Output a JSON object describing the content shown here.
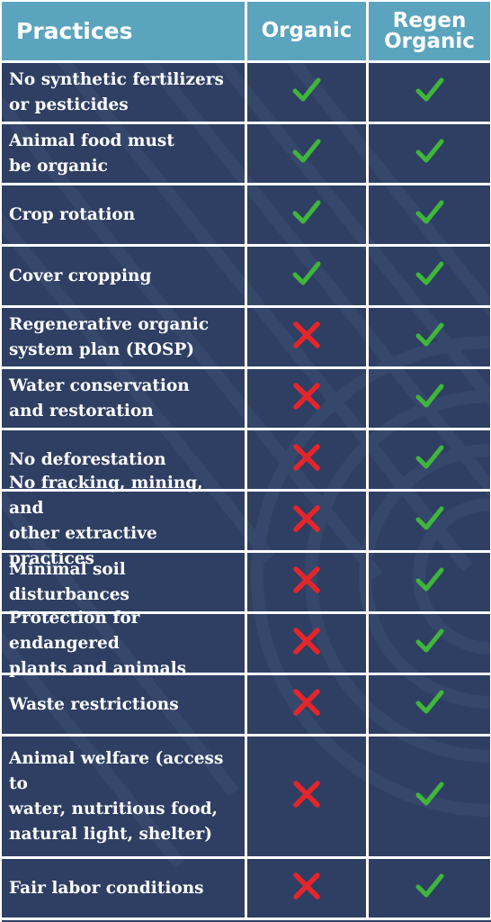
{
  "colors": {
    "header_bg": "#5ba4bd",
    "body_bg": "#2f3f63",
    "check": "#3fb63a",
    "cross": "#e5252a"
  },
  "header": {
    "practices": "Practices",
    "organic": "Organic",
    "regen_line1": "Regen",
    "regen_line2": "Organic"
  },
  "rows": [
    {
      "practice": "No synthetic fertilizers\nor pesticides",
      "organic": "check-icon",
      "regen": "check-icon"
    },
    {
      "practice": "Animal food must\nbe organic",
      "organic": "check-icon",
      "regen": "check-icon"
    },
    {
      "practice": "Crop rotation",
      "organic": "check-icon",
      "regen": "check-icon"
    },
    {
      "practice": "Cover cropping",
      "organic": "check-icon",
      "regen": "check-icon"
    },
    {
      "practice": "Regenerative organic\nsystem plan (ROSP)",
      "organic": "cross-icon",
      "regen": "check-icon"
    },
    {
      "practice": "Water conservation\nand restoration",
      "organic": "cross-icon",
      "regen": "check-icon"
    },
    {
      "practice": "No deforestation",
      "organic": "cross-icon",
      "regen": "check-icon"
    },
    {
      "practice": "No fracking, mining, and\nother extractive practices",
      "organic": "cross-icon",
      "regen": "check-icon"
    },
    {
      "practice": "Minimal soil\ndisturbances",
      "organic": "cross-icon",
      "regen": "check-icon"
    },
    {
      "practice": "Protection for endangered\nplants and animals",
      "organic": "cross-icon",
      "regen": "check-icon"
    },
    {
      "practice": "Waste restrictions",
      "organic": "cross-icon",
      "regen": "check-icon"
    },
    {
      "practice": "Animal welfare (access to\nwater, nutritious food,\nnatural light, shelter)",
      "organic": "cross-icon",
      "regen": "check-icon"
    },
    {
      "practice": "Fair labor conditions",
      "organic": "cross-icon",
      "regen": "check-icon"
    }
  ]
}
